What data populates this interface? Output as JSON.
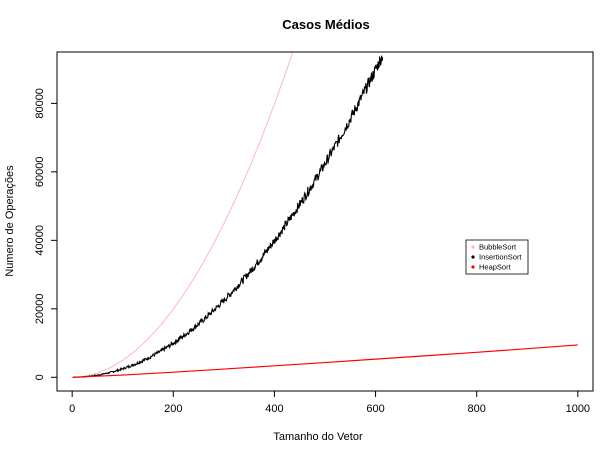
{
  "chart_data": {
    "type": "line",
    "title": "Casos Médios",
    "xlabel": "Tamanho do Vetor",
    "ylabel": "Numero de Operações",
    "xlim": [
      -30,
      1030
    ],
    "ylim": [
      -4000,
      95000
    ],
    "xticks": [
      0,
      200,
      400,
      600,
      800,
      1000
    ],
    "yticks": [
      0,
      20000,
      40000,
      60000,
      80000
    ],
    "xtick_labels": [
      "0",
      "200",
      "400",
      "600",
      "800",
      "1000"
    ],
    "ytick_labels": [
      "0",
      "20000",
      "40000",
      "60000",
      "80000"
    ],
    "grid": false,
    "legend_position": "right",
    "series": [
      {
        "name": "BubbleSort",
        "color": "#ffb6c1",
        "x": [
          1,
          25,
          50,
          75,
          100,
          125,
          150,
          175,
          200,
          225,
          250,
          275,
          300,
          325,
          350,
          375,
          400,
          425,
          436
        ],
        "y": [
          0,
          300,
          1225,
          2775,
          4950,
          7750,
          11175,
          15225,
          19900,
          25200,
          31125,
          37675,
          44850,
          52650,
          61075,
          70125,
          79800,
          90100,
          94830
        ]
      },
      {
        "name": "InsertionSort",
        "color": "#000000",
        "x": [
          1,
          25,
          50,
          75,
          100,
          125,
          150,
          175,
          200,
          225,
          250,
          275,
          300,
          325,
          350,
          375,
          400,
          425,
          450,
          475,
          500,
          525,
          550,
          575,
          600,
          615
        ],
        "y": [
          0,
          150,
          612,
          1387,
          2475,
          3875,
          5587,
          7612,
          9950,
          12600,
          15562,
          18837,
          22425,
          26325,
          30537,
          35062,
          39900,
          45050,
          50512,
          56287,
          62375,
          68775,
          75487,
          82512,
          89850,
          94400
        ]
      },
      {
        "name": "HeapSort",
        "color": "#ff0000",
        "x": [
          1,
          100,
          200,
          300,
          400,
          500,
          600,
          700,
          800,
          900,
          1000
        ],
        "y": [
          0,
          650,
          1500,
          2400,
          3350,
          4300,
          5300,
          6300,
          7300,
          8350,
          9450
        ]
      }
    ]
  }
}
